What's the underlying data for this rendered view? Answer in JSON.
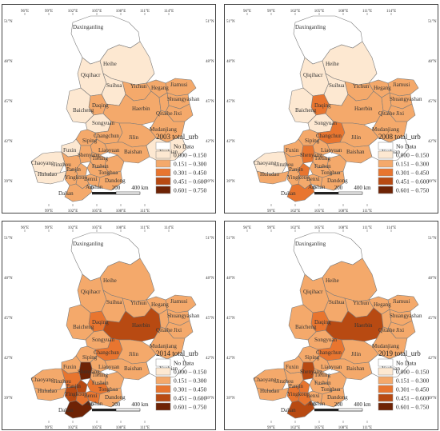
{
  "colors": {
    "no_data": "#ffffff",
    "c1": "#fde8d1",
    "c2": "#f4a96b",
    "c3": "#e8752f",
    "c4": "#b84a12",
    "c5": "#6e2305"
  },
  "ticks": {
    "top": [
      "96°E",
      "99°E",
      "102°E",
      "105°E",
      "108°E",
      "111°E",
      "114°E"
    ],
    "bottom": [
      "99°E",
      "102°E",
      "105°E",
      "108°E",
      "111°E"
    ],
    "left": [
      "51°N",
      "48°N",
      "45°N",
      "42°N",
      "39°N"
    ],
    "right": [
      "51°N",
      "48°N",
      "45°N",
      "42°N",
      "39°N"
    ]
  },
  "cities": [
    "Daxinganling",
    "Heihe",
    "Qiqihacr",
    "Suihua",
    "Yichun",
    "Hegang",
    "Jiamusi",
    "Shuangyashan",
    "Daqing",
    "Baicheng",
    "Songyuan",
    "Haerbin",
    "Qitaihe",
    "Jixi",
    "Mudanjiang",
    "Changchun",
    "Jilin",
    "Siping",
    "Liaoyuan",
    "Fuxin",
    "Shenyang",
    "Tieling",
    "Chaoyang",
    "Jinzhou",
    "Panjin",
    "Fushun",
    "Tonghua",
    "Baishan",
    "Huludao",
    "Yingkou",
    "Benxi",
    "Anshan",
    "Dandong",
    "Dalian",
    "Yanbian"
  ],
  "legend": {
    "labels": [
      "No Data",
      "0.000 – 0.150",
      "0.151 – 0.300",
      "0.301 – 0.450",
      "0.451 – 0.600",
      "0.601 – 0.750"
    ]
  },
  "scale": {
    "labels": [
      "0",
      "200",
      "400 km"
    ]
  },
  "panels": [
    {
      "title": "2003 total_urb",
      "classes": {
        "Daxinganling": 0,
        "Heihe": 1,
        "Qiqihacr": 1,
        "Suihua": 1,
        "Yichun": 2,
        "Hegang": 2,
        "Jiamusi": 2,
        "Shuangyashan": 2,
        "Daqing": 2,
        "Baicheng": 1,
        "Songyuan": 1,
        "Haerbin": 2,
        "Qitaihe": 2,
        "Jixi": 2,
        "Mudanjiang": 2,
        "Changchun": 2,
        "Jilin": 2,
        "Siping": 2,
        "Liaoyuan": 2,
        "Fuxin": 1,
        "Shenyang": 2,
        "Tieling": 2,
        "Chaoyang": 1,
        "Jinzhou": 2,
        "Panjin": 2,
        "Fushun": 2,
        "Tonghua": 2,
        "Baishan": 2,
        "Huludao": 1,
        "Yingkou": 2,
        "Benxi": 2,
        "Anshan": 2,
        "Dandong": 2,
        "Dalian": 2,
        "Yanbian": 1
      }
    },
    {
      "title": "2008 total_urb",
      "classes": {
        "Daxinganling": 0,
        "Heihe": 1,
        "Qiqihacr": 1,
        "Suihua": 1,
        "Yichun": 2,
        "Hegang": 2,
        "Jiamusi": 2,
        "Shuangyashan": 2,
        "Daqing": 3,
        "Baicheng": 1,
        "Songyuan": 1,
        "Haerbin": 2,
        "Qitaihe": 2,
        "Jixi": 2,
        "Mudanjiang": 2,
        "Changchun": 3,
        "Jilin": 2,
        "Siping": 2,
        "Liaoyuan": 2,
        "Fuxin": 2,
        "Shenyang": 3,
        "Tieling": 2,
        "Chaoyang": 1,
        "Jinzhou": 2,
        "Panjin": 3,
        "Fushun": 2,
        "Tonghua": 2,
        "Baishan": 2,
        "Huludao": 2,
        "Yingkou": 2,
        "Benxi": 2,
        "Anshan": 2,
        "Dandong": 2,
        "Dalian": 3,
        "Yanbian": 0
      }
    },
    {
      "title": "2014 total_urb",
      "classes": {
        "Daxinganling": 0,
        "Heihe": 2,
        "Qiqihacr": 2,
        "Suihua": 2,
        "Yichun": 2,
        "Hegang": 2,
        "Jiamusi": 2,
        "Shuangyashan": 2,
        "Daqing": 3,
        "Baicheng": 2,
        "Songyuan": 2,
        "Haerbin": 4,
        "Qitaihe": 2,
        "Jixi": 2,
        "Mudanjiang": 2,
        "Changchun": 3,
        "Jilin": 2,
        "Siping": 2,
        "Liaoyuan": 2,
        "Fuxin": 2,
        "Shenyang": 5,
        "Tieling": 2,
        "Chaoyang": 2,
        "Jinzhou": 3,
        "Panjin": 4,
        "Fushun": 3,
        "Tonghua": 2,
        "Baishan": 2,
        "Huludao": 2,
        "Yingkou": 3,
        "Benxi": 3,
        "Anshan": 4,
        "Dandong": 2,
        "Dalian": 5,
        "Yanbian": 0
      }
    },
    {
      "title": "2019 total_urb",
      "classes": {
        "Daxinganling": 0,
        "Heihe": 2,
        "Qiqihacr": 2,
        "Suihua": 2,
        "Yichun": 2,
        "Hegang": 2,
        "Jiamusi": 2,
        "Shuangyashan": 2,
        "Daqing": 3,
        "Baicheng": 2,
        "Songyuan": 2,
        "Haerbin": 4,
        "Qitaihe": 2,
        "Jixi": 2,
        "Mudanjiang": 2,
        "Changchun": 3,
        "Jilin": 2,
        "Siping": 2,
        "Liaoyuan": 2,
        "Fuxin": 2,
        "Shenyang": 4,
        "Tieling": 2,
        "Chaoyang": 2,
        "Jinzhou": 2,
        "Panjin": 3,
        "Fushun": 2,
        "Tonghua": 2,
        "Baishan": 2,
        "Huludao": 2,
        "Yingkou": 3,
        "Benxi": 2,
        "Anshan": 3,
        "Dandong": 2,
        "Dalian": 4,
        "Yanbian": 0
      }
    }
  ]
}
